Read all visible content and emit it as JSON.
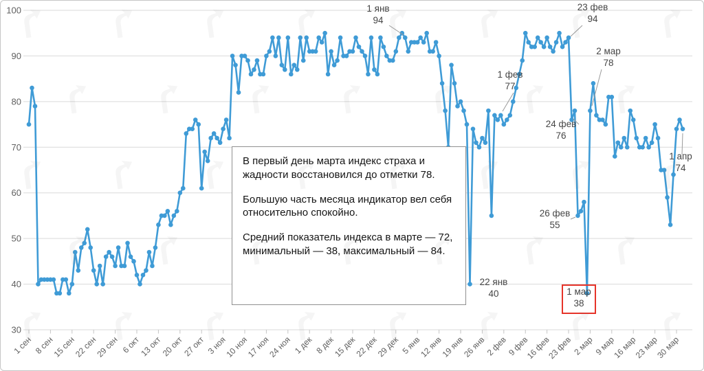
{
  "chart_data": {
    "type": "line",
    "title": "",
    "xlabel": "",
    "ylabel": "",
    "ylim": [
      30,
      100
    ],
    "grid": true,
    "legend": false,
    "line_color": "#3f9bd6",
    "x_tick_labels": [
      "1 сен",
      "8 сен",
      "15 сен",
      "22 сен",
      "29 сен",
      "6 окт",
      "13 окт",
      "20 окт",
      "27 окт",
      "3 ноя",
      "10 ноя",
      "17 ноя",
      "24 ноя",
      "1 дек",
      "8 дек",
      "15 дек",
      "22 дек",
      "29 дек",
      "5 янв",
      "12 янв",
      "19 янв",
      "26 янв",
      "2 фев",
      "9 фев",
      "16 фев",
      "23 фев",
      "2 мар",
      "9 мар",
      "16 мар",
      "23 мар",
      "30 мар"
    ],
    "y_ticks": [
      100,
      90,
      80,
      70,
      60,
      50,
      40,
      30
    ],
    "series": [
      {
        "name": "Индекс страха и жадности",
        "start": "1 сен",
        "end": "1 апр",
        "values": [
          75,
          83,
          79,
          40,
          41,
          41,
          41,
          41,
          41,
          38,
          38,
          41,
          41,
          38,
          40,
          47,
          43,
          48,
          49,
          52,
          48,
          43,
          40,
          44,
          40,
          46,
          47,
          46,
          44,
          48,
          44,
          44,
          49,
          46,
          45,
          42,
          40,
          42,
          43,
          47,
          44,
          48,
          53,
          55,
          55,
          56,
          53,
          55,
          56,
          60,
          61,
          73,
          74,
          74,
          76,
          75,
          61,
          69,
          67,
          72,
          73,
          72,
          71,
          74,
          76,
          72,
          90,
          88,
          82,
          90,
          90,
          89,
          86,
          87,
          89,
          86,
          86,
          90,
          91,
          94,
          90,
          94,
          88,
          87,
          94,
          86,
          88,
          87,
          94,
          89,
          94,
          91,
          91,
          91,
          94,
          93,
          95,
          86,
          91,
          88,
          89,
          94,
          90,
          90,
          91,
          91,
          94,
          92,
          91,
          90,
          86,
          94,
          87,
          86,
          94,
          92,
          90,
          89,
          89,
          91,
          94,
          95,
          94,
          91,
          93,
          93,
          93,
          94,
          93,
          95,
          91,
          91,
          93,
          90,
          84,
          78,
          70,
          88,
          84,
          79,
          80,
          78,
          75,
          40,
          74,
          71,
          70,
          72,
          71,
          78,
          55,
          77,
          76,
          77,
          75,
          76,
          77,
          80,
          83,
          86,
          89,
          95,
          93,
          92,
          92,
          94,
          93,
          92,
          94,
          92,
          91,
          93,
          95,
          92,
          93,
          94,
          76,
          78,
          55,
          56,
          58,
          38,
          78,
          84,
          77,
          76,
          76,
          75,
          81,
          81,
          68,
          71,
          70,
          72,
          70,
          78,
          76,
          72,
          70,
          70,
          72,
          70,
          71,
          75,
          72,
          65,
          65,
          59,
          53,
          64,
          74,
          76,
          74
        ]
      }
    ],
    "annotations": [
      {
        "date": "1 янв",
        "value": "94",
        "day": 122,
        "tx": 549,
        "ty": 16,
        "pointer": [
          565,
          36,
          586,
          50
        ],
        "boxed": false
      },
      {
        "date": "23 фев",
        "value": "94",
        "day": 175,
        "tx": 861,
        "ty": 14,
        "pointer": [
          846,
          36,
          829,
          52
        ],
        "boxed": false
      },
      {
        "date": "2 мар",
        "value": "78",
        "day": 182,
        "tx": 884,
        "ty": 78,
        "pointer": [
          874,
          100,
          860,
          153
        ],
        "boxed": false
      },
      {
        "date": "1 фев",
        "value": "77",
        "day": 153,
        "tx": 741,
        "ty": 112,
        "pointer": [
          746,
          134,
          730,
          161
        ],
        "boxed": false
      },
      {
        "date": "24 фев",
        "value": "76",
        "day": 176,
        "tx": 815,
        "ty": 184,
        "pointer": [
          841,
          180,
          833,
          172
        ],
        "boxed": false
      },
      {
        "date": "26 фев",
        "value": "55",
        "day": 178,
        "tx": 806,
        "ty": 314,
        "pointer": [
          829,
          318,
          836,
          315
        ],
        "boxed": false
      },
      {
        "date": "22 янв",
        "value": "40",
        "day": 143,
        "tx": 717,
        "ty": 414,
        "pointer": null,
        "boxed": false
      },
      {
        "date": "1 мар",
        "value": "38",
        "day": 181,
        "tx": 841,
        "ty": 428,
        "pointer": null,
        "boxed": true
      },
      {
        "date": "1 апр",
        "value": "74",
        "day": 212,
        "tx": 989,
        "ty": 231,
        "pointer": [
          991,
          224,
          992,
          193
        ],
        "boxed": false
      }
    ],
    "highlight_box": {
      "x": 817,
      "y": 414,
      "w": 48,
      "h": 41,
      "color": "#e63329"
    }
  },
  "commentary": {
    "paragraphs": [
      "В первый день марта индекс страха и жадности восстановился до отметки 78.",
      "Большую часть месяца индикатор вел себя относительно спокойно.",
      "Средний показатель индекса в марте — 72, минимальный — 38, максимальный — 84."
    ]
  },
  "watermark": {
    "icon": "forklog-logo",
    "color": "#777777",
    "opacity": 0.07
  }
}
